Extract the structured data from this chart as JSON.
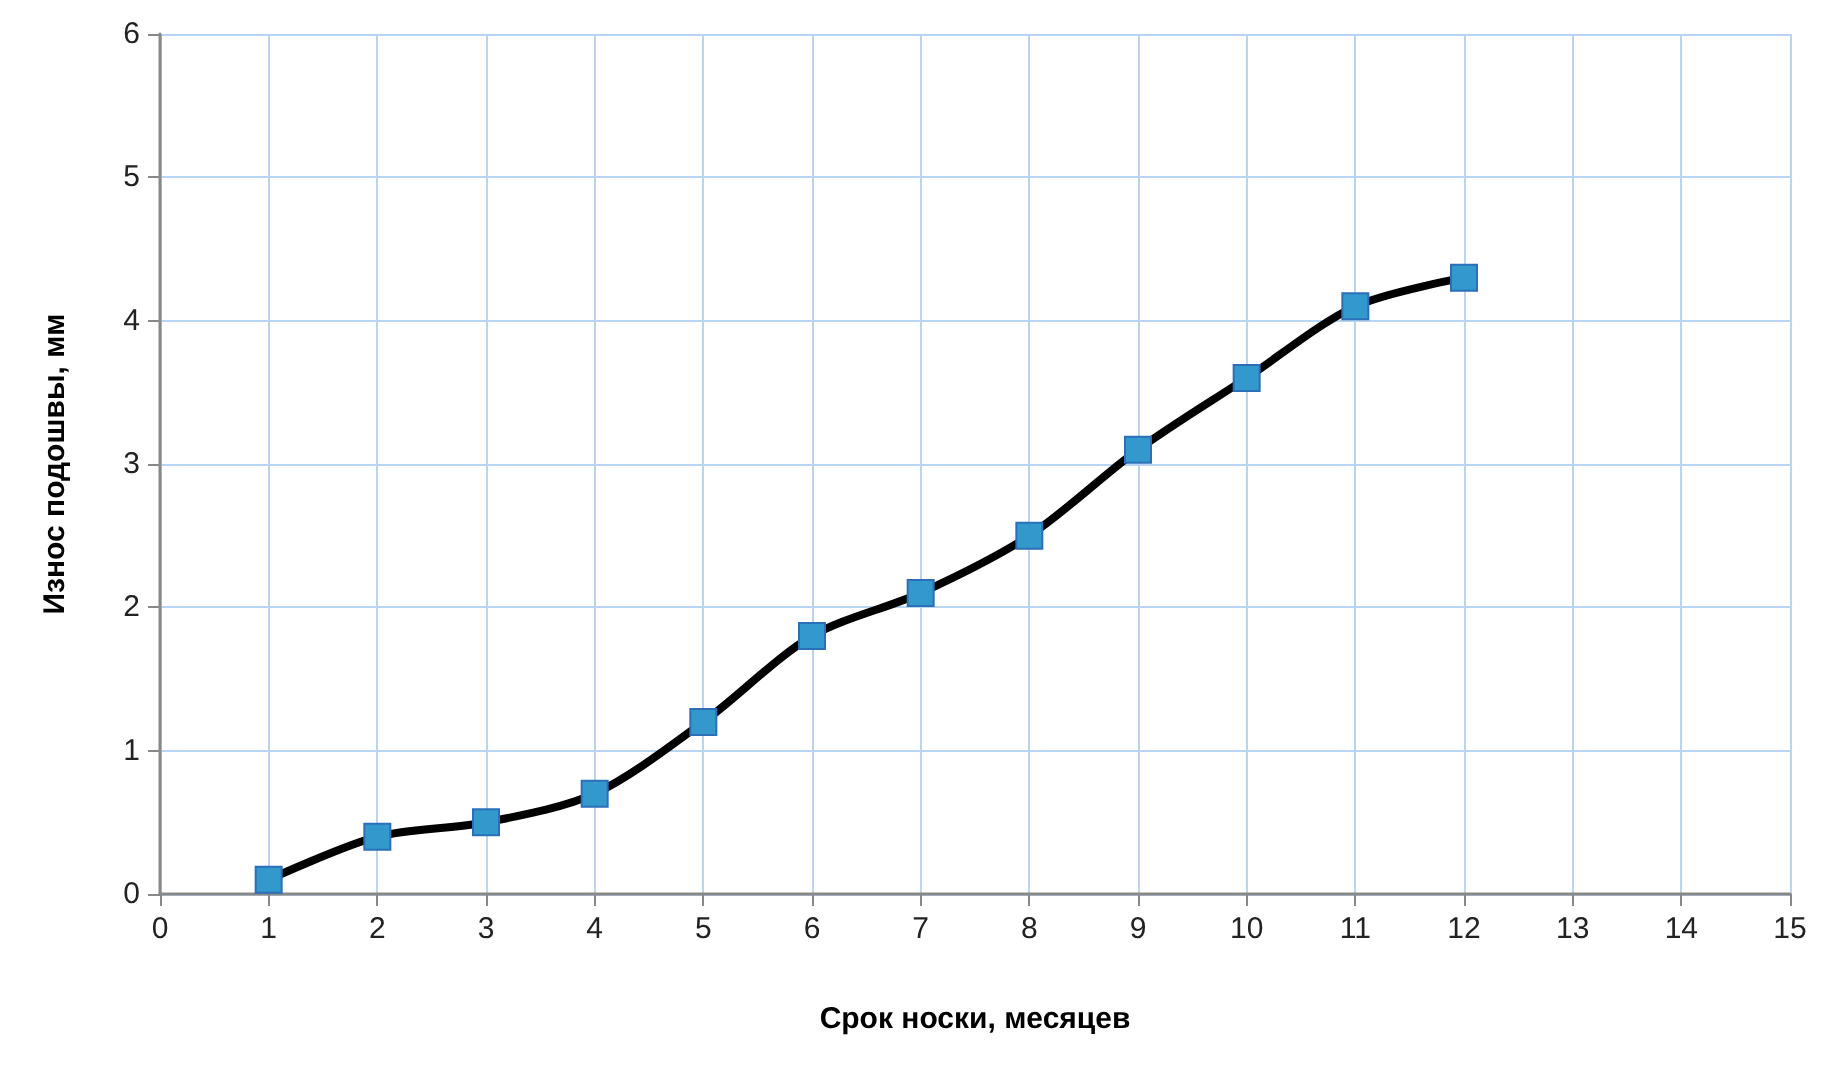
{
  "chart_data": {
    "type": "line",
    "xlabel": "Срок носки, месяцев",
    "ylabel": "Износ подошвы, мм",
    "x": [
      1,
      2,
      3,
      4,
      5,
      6,
      7,
      8,
      9,
      10,
      11,
      12
    ],
    "series": [
      {
        "color": "#000000",
        "colors": [
          "#3399cc",
          "#3399cc",
          "#3399cc",
          "#3399cc",
          "#3399cc",
          "#3399cc",
          "#3399cc",
          "#3399cc",
          "#3399cc",
          "#3399cc",
          "#3399cc",
          "#3399cc"
        ],
        "values": [
          0.1,
          0.4,
          0.5,
          0.7,
          1.2,
          1.8,
          2.1,
          2.5,
          3.1,
          3.6,
          4.1,
          4.3
        ]
      }
    ],
    "xlim": [
      0,
      15
    ],
    "xticks": [
      0,
      1,
      2,
      3,
      4,
      5,
      6,
      7,
      8,
      9,
      10,
      11,
      12,
      13,
      14,
      15
    ],
    "ylim": [
      0,
      6
    ],
    "yticks": [
      0,
      1,
      2,
      3,
      4,
      5,
      6
    ],
    "grid": true,
    "marker": "square",
    "line_style": "solid"
  }
}
